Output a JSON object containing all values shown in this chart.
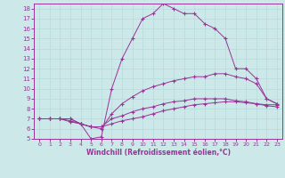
{
  "xlabel": "Windchill (Refroidissement éolien,°C)",
  "xlim": [
    -0.5,
    23.5
  ],
  "ylim": [
    5,
    18.5
  ],
  "xticks": [
    0,
    1,
    2,
    3,
    4,
    5,
    6,
    7,
    8,
    9,
    10,
    11,
    12,
    13,
    14,
    15,
    16,
    17,
    18,
    19,
    20,
    21,
    22,
    23
  ],
  "yticks": [
    5,
    6,
    7,
    8,
    9,
    10,
    11,
    12,
    13,
    14,
    15,
    16,
    17,
    18
  ],
  "bg_color": "#cce8e8",
  "line_color": "#993399",
  "grid_color": "#bbdddd",
  "lines": [
    {
      "x": [
        0,
        1,
        2,
        3,
        4,
        5,
        6,
        7,
        8,
        9,
        10,
        11,
        12,
        13,
        14,
        15,
        16,
        17,
        18,
        19,
        20,
        21,
        22,
        23
      ],
      "y": [
        7.0,
        7.0,
        7.0,
        7.0,
        6.5,
        5.0,
        5.2,
        10.0,
        13.0,
        15.0,
        17.0,
        17.5,
        18.5,
        18.0,
        17.5,
        17.5,
        16.5,
        16.0,
        15.0,
        12.0,
        12.0,
        11.0,
        9.0,
        8.5
      ]
    },
    {
      "x": [
        0,
        1,
        2,
        3,
        4,
        5,
        6,
        7,
        8,
        9,
        10,
        11,
        12,
        13,
        14,
        15,
        16,
        17,
        18,
        19,
        20,
        21,
        22,
        23
      ],
      "y": [
        7.0,
        7.0,
        7.0,
        7.0,
        6.5,
        6.2,
        6.0,
        7.5,
        8.5,
        9.2,
        9.8,
        10.2,
        10.5,
        10.8,
        11.0,
        11.2,
        11.2,
        11.5,
        11.5,
        11.2,
        11.0,
        10.5,
        9.0,
        8.5
      ]
    },
    {
      "x": [
        0,
        1,
        2,
        3,
        4,
        5,
        6,
        7,
        8,
        9,
        10,
        11,
        12,
        13,
        14,
        15,
        16,
        17,
        18,
        19,
        20,
        21,
        22,
        23
      ],
      "y": [
        7.0,
        7.0,
        7.0,
        6.8,
        6.5,
        6.2,
        6.2,
        7.0,
        7.3,
        7.7,
        8.0,
        8.2,
        8.5,
        8.7,
        8.8,
        9.0,
        9.0,
        9.0,
        9.0,
        8.8,
        8.7,
        8.5,
        8.3,
        8.2
      ]
    },
    {
      "x": [
        0,
        1,
        2,
        3,
        4,
        5,
        6,
        7,
        8,
        9,
        10,
        11,
        12,
        13,
        14,
        15,
        16,
        17,
        18,
        19,
        20,
        21,
        22,
        23
      ],
      "y": [
        7.0,
        7.0,
        7.0,
        6.7,
        6.5,
        6.2,
        6.2,
        6.5,
        6.8,
        7.0,
        7.2,
        7.5,
        7.8,
        8.0,
        8.2,
        8.4,
        8.5,
        8.6,
        8.7,
        8.7,
        8.6,
        8.5,
        8.4,
        8.4
      ]
    }
  ]
}
